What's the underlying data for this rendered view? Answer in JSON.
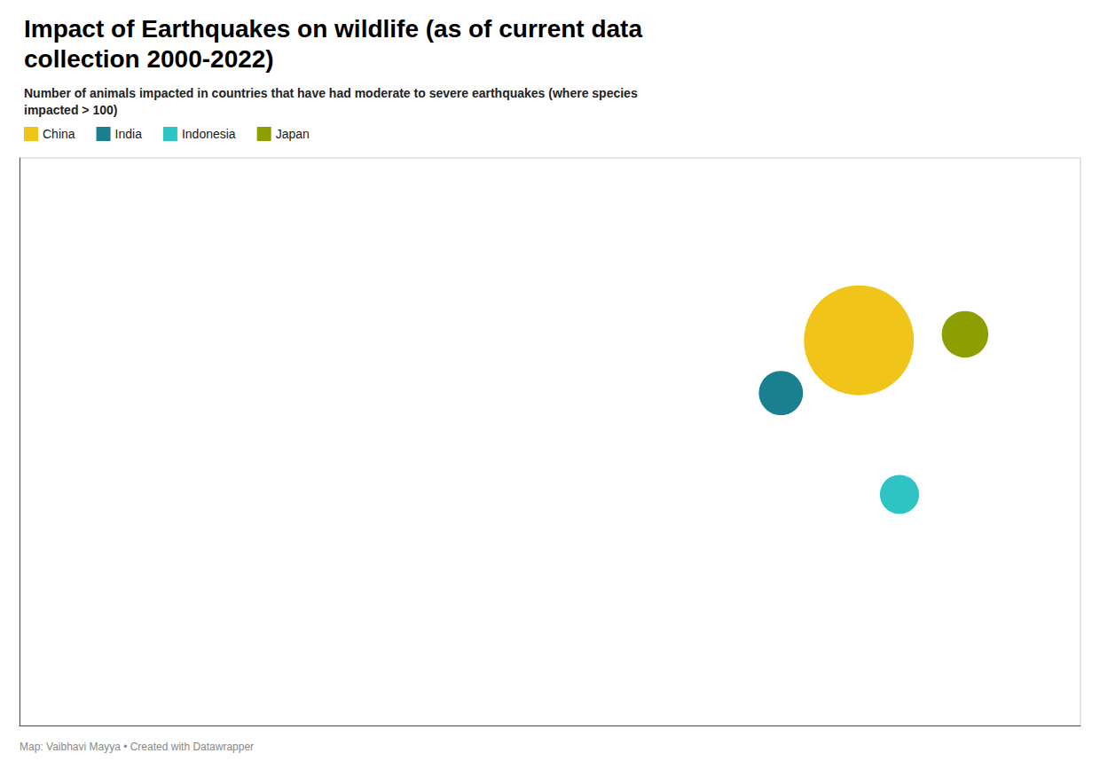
{
  "chart_data": {
    "type": "scatter",
    "title": "Impact of Earthquakes on wildlife (as of current data\ncollection 2000-2022)",
    "subtitle": "Number of animals impacted in countries that have had moderate to severe earthquakes (where species\nimpacted > 100)",
    "annotations": [
      "Map: Vaibhavi Mayya • Created with Datawrapper"
    ],
    "series": [
      {
        "name": "China",
        "color": "#f0c419",
        "x": [
          104.0
        ],
        "y": [
          35.0
        ],
        "size": [
          5000
        ]
      },
      {
        "name": "India",
        "color": "#1a7f8e",
        "x": [
          79.0
        ],
        "y": [
          22.0
        ],
        "size": [
          130
        ]
      },
      {
        "name": "Indonesia",
        "color": "#2ec4c4",
        "x": [
          117.0
        ],
        "y": [
          -3.0
        ],
        "size": [
          80
        ]
      },
      {
        "name": "Japan",
        "color": "#8d9e00",
        "x": [
          138.0
        ],
        "y": [
          36.5
        ],
        "size": [
          160
        ]
      }
    ],
    "xlim": [
      -165,
      175
    ],
    "ylim": [
      -60,
      80
    ],
    "tick_labels": false,
    "grid": false,
    "legend": "top left"
  }
}
